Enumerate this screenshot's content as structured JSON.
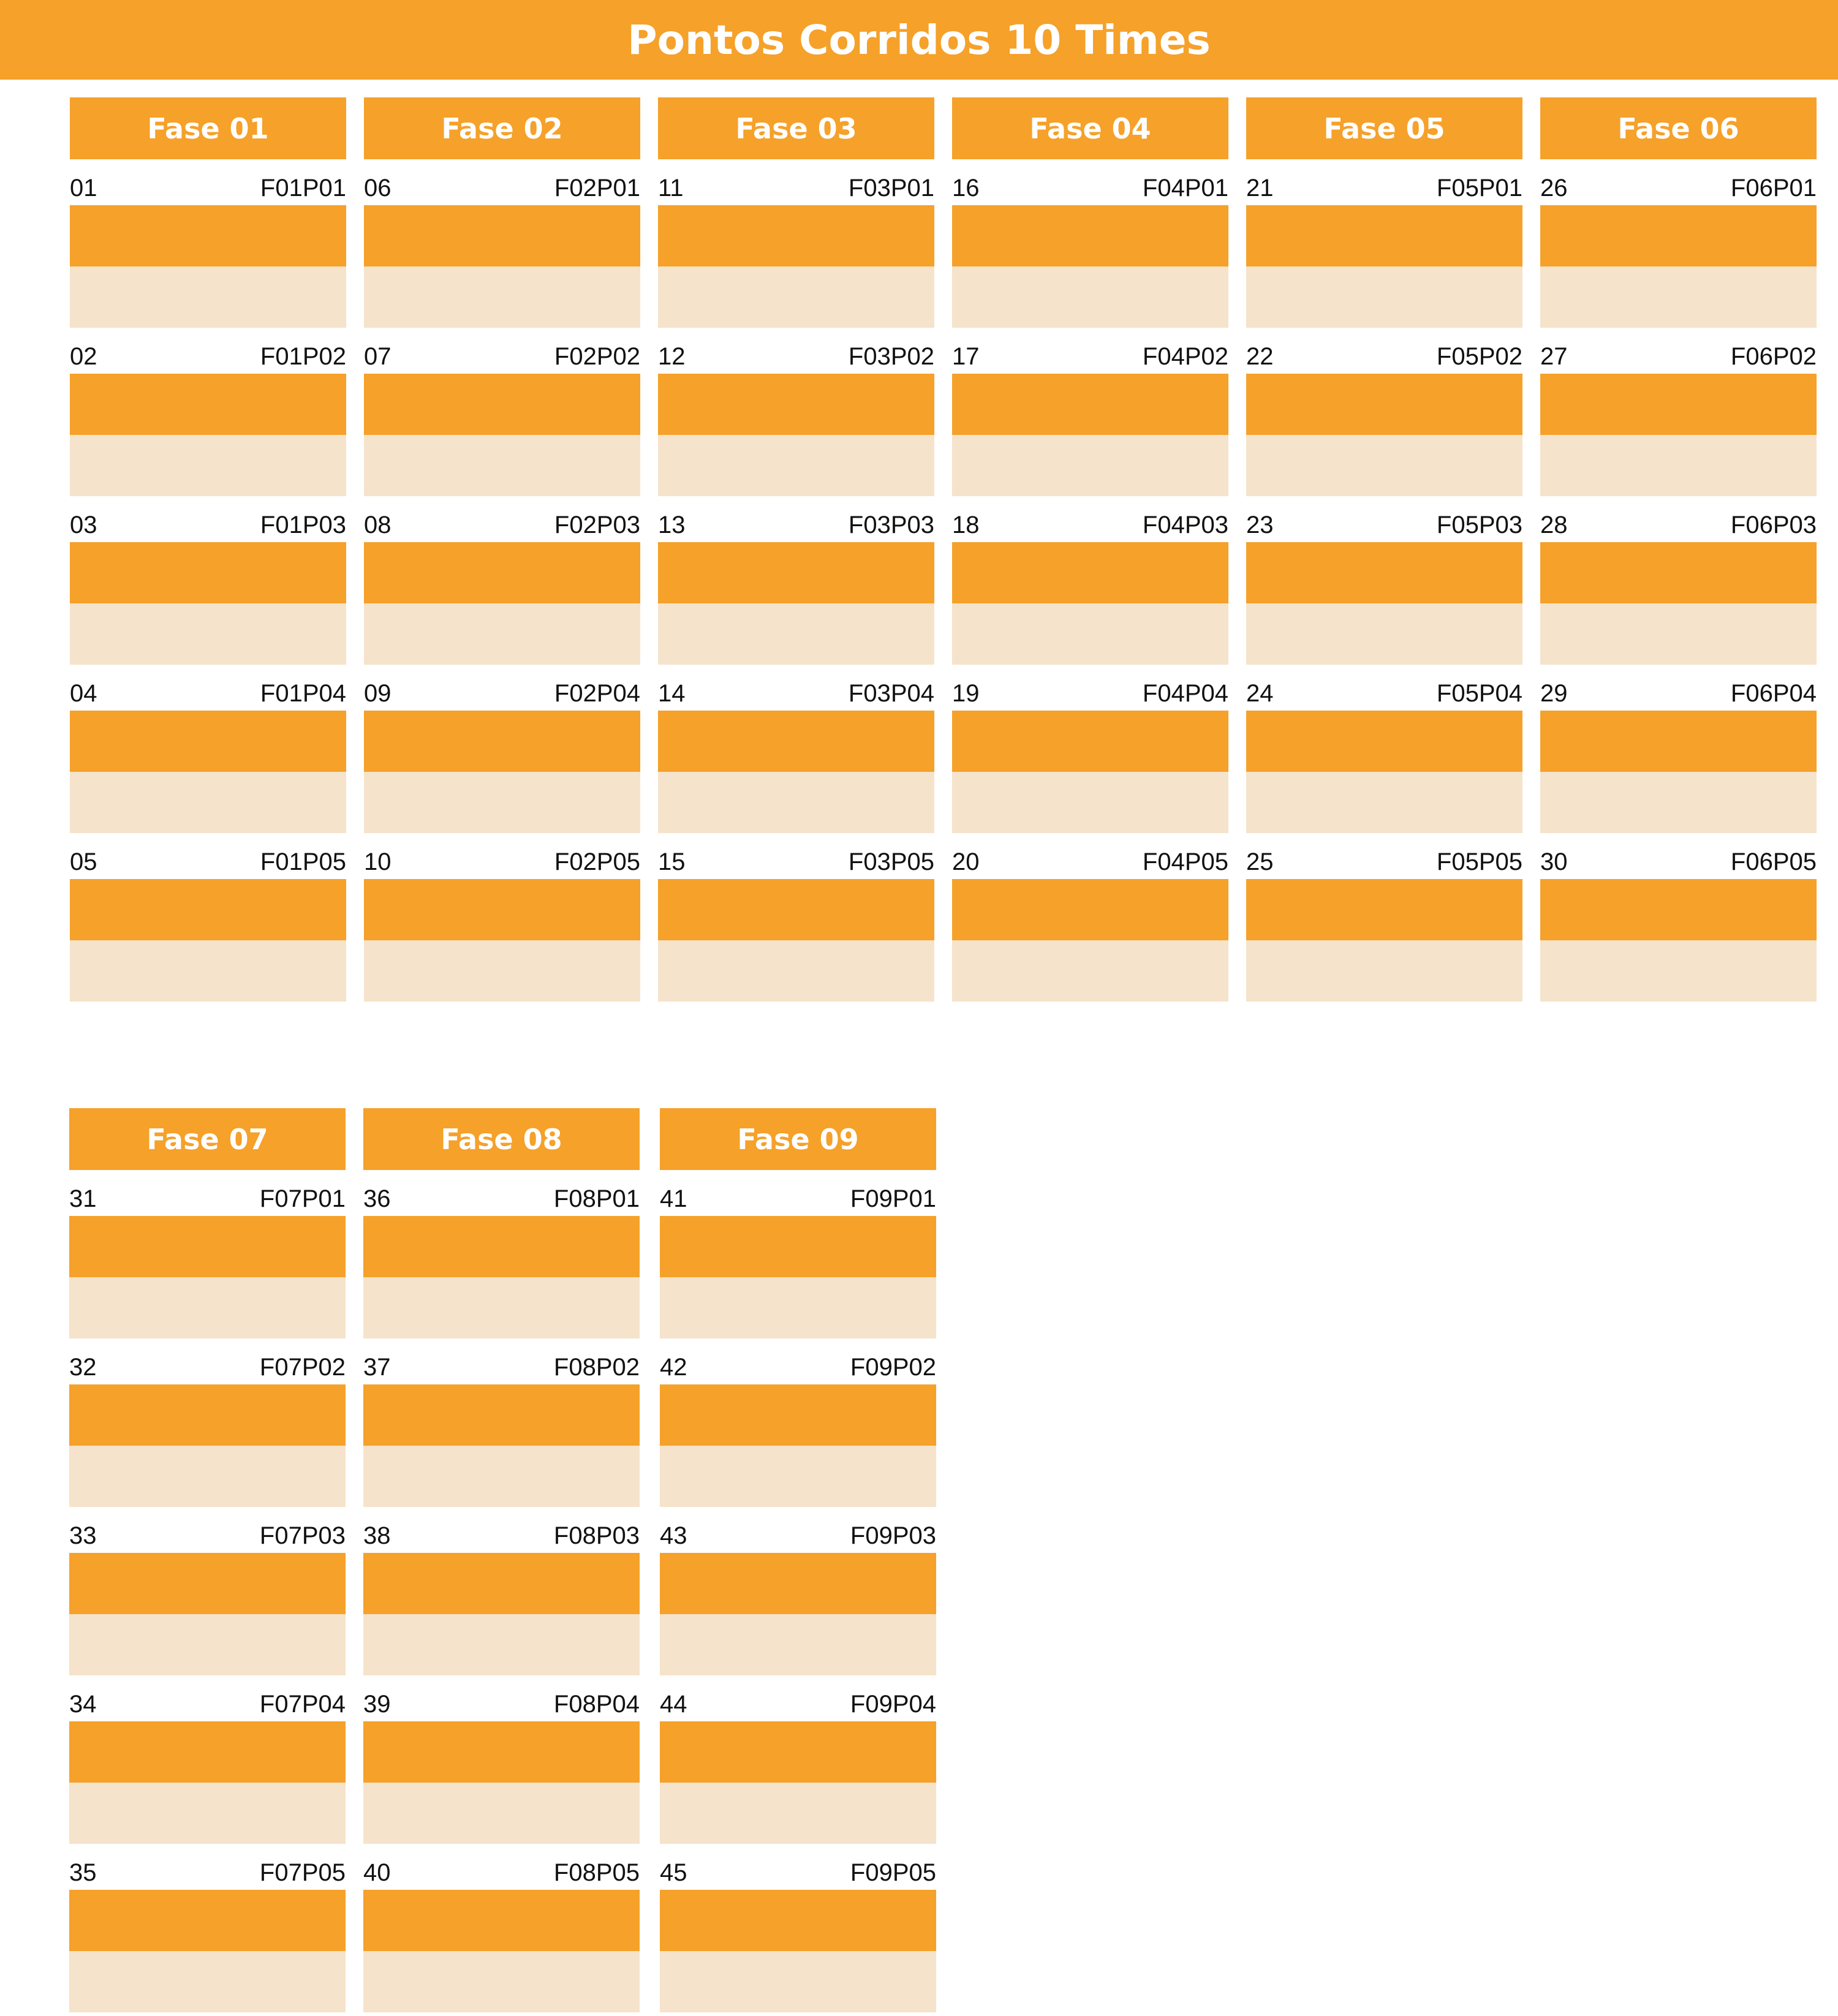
{
  "title": "Pontos Corridos 10 Times",
  "colors": {
    "accent": "#F5A12A",
    "slot_light": "#F5E3CB",
    "text": "#111111"
  },
  "phases": [
    {
      "label": "Fase 01",
      "matches": [
        {
          "number": "01",
          "code": "F01P01"
        },
        {
          "number": "02",
          "code": "F01P02"
        },
        {
          "number": "03",
          "code": "F01P03"
        },
        {
          "number": "04",
          "code": "F01P04"
        },
        {
          "number": "05",
          "code": "F01P05"
        }
      ]
    },
    {
      "label": "Fase 02",
      "matches": [
        {
          "number": "06",
          "code": "F02P01"
        },
        {
          "number": "07",
          "code": "F02P02"
        },
        {
          "number": "08",
          "code": "F02P03"
        },
        {
          "number": "09",
          "code": "F02P04"
        },
        {
          "number": "10",
          "code": "F02P05"
        }
      ]
    },
    {
      "label": "Fase 03",
      "matches": [
        {
          "number": "11",
          "code": "F03P01"
        },
        {
          "number": "12",
          "code": "F03P02"
        },
        {
          "number": "13",
          "code": "F03P03"
        },
        {
          "number": "14",
          "code": "F03P04"
        },
        {
          "number": "15",
          "code": "F03P05"
        }
      ]
    },
    {
      "label": "Fase 04",
      "matches": [
        {
          "number": "16",
          "code": "F04P01"
        },
        {
          "number": "17",
          "code": "F04P02"
        },
        {
          "number": "18",
          "code": "F04P03"
        },
        {
          "number": "19",
          "code": "F04P04"
        },
        {
          "number": "20",
          "code": "F04P05"
        }
      ]
    },
    {
      "label": "Fase 05",
      "matches": [
        {
          "number": "21",
          "code": "F05P01"
        },
        {
          "number": "22",
          "code": "F05P02"
        },
        {
          "number": "23",
          "code": "F05P03"
        },
        {
          "number": "24",
          "code": "F05P04"
        },
        {
          "number": "25",
          "code": "F05P05"
        }
      ]
    },
    {
      "label": "Fase 06",
      "matches": [
        {
          "number": "26",
          "code": "F06P01"
        },
        {
          "number": "27",
          "code": "F06P02"
        },
        {
          "number": "28",
          "code": "F06P03"
        },
        {
          "number": "29",
          "code": "F06P04"
        },
        {
          "number": "30",
          "code": "F06P05"
        }
      ]
    },
    {
      "label": "Fase 07",
      "matches": [
        {
          "number": "31",
          "code": "F07P01"
        },
        {
          "number": "32",
          "code": "F07P02"
        },
        {
          "number": "33",
          "code": "F07P03"
        },
        {
          "number": "34",
          "code": "F07P04"
        },
        {
          "number": "35",
          "code": "F07P05"
        }
      ]
    },
    {
      "label": "Fase 08",
      "matches": [
        {
          "number": "36",
          "code": "F08P01"
        },
        {
          "number": "37",
          "code": "F08P02"
        },
        {
          "number": "38",
          "code": "F08P03"
        },
        {
          "number": "39",
          "code": "F08P04"
        },
        {
          "number": "40",
          "code": "F08P05"
        }
      ]
    },
    {
      "label": "Fase 09",
      "matches": [
        {
          "number": "41",
          "code": "F09P01"
        },
        {
          "number": "42",
          "code": "F09P02"
        },
        {
          "number": "43",
          "code": "F09P03"
        },
        {
          "number": "44",
          "code": "F09P04"
        },
        {
          "number": "45",
          "code": "F09P05"
        }
      ]
    }
  ]
}
